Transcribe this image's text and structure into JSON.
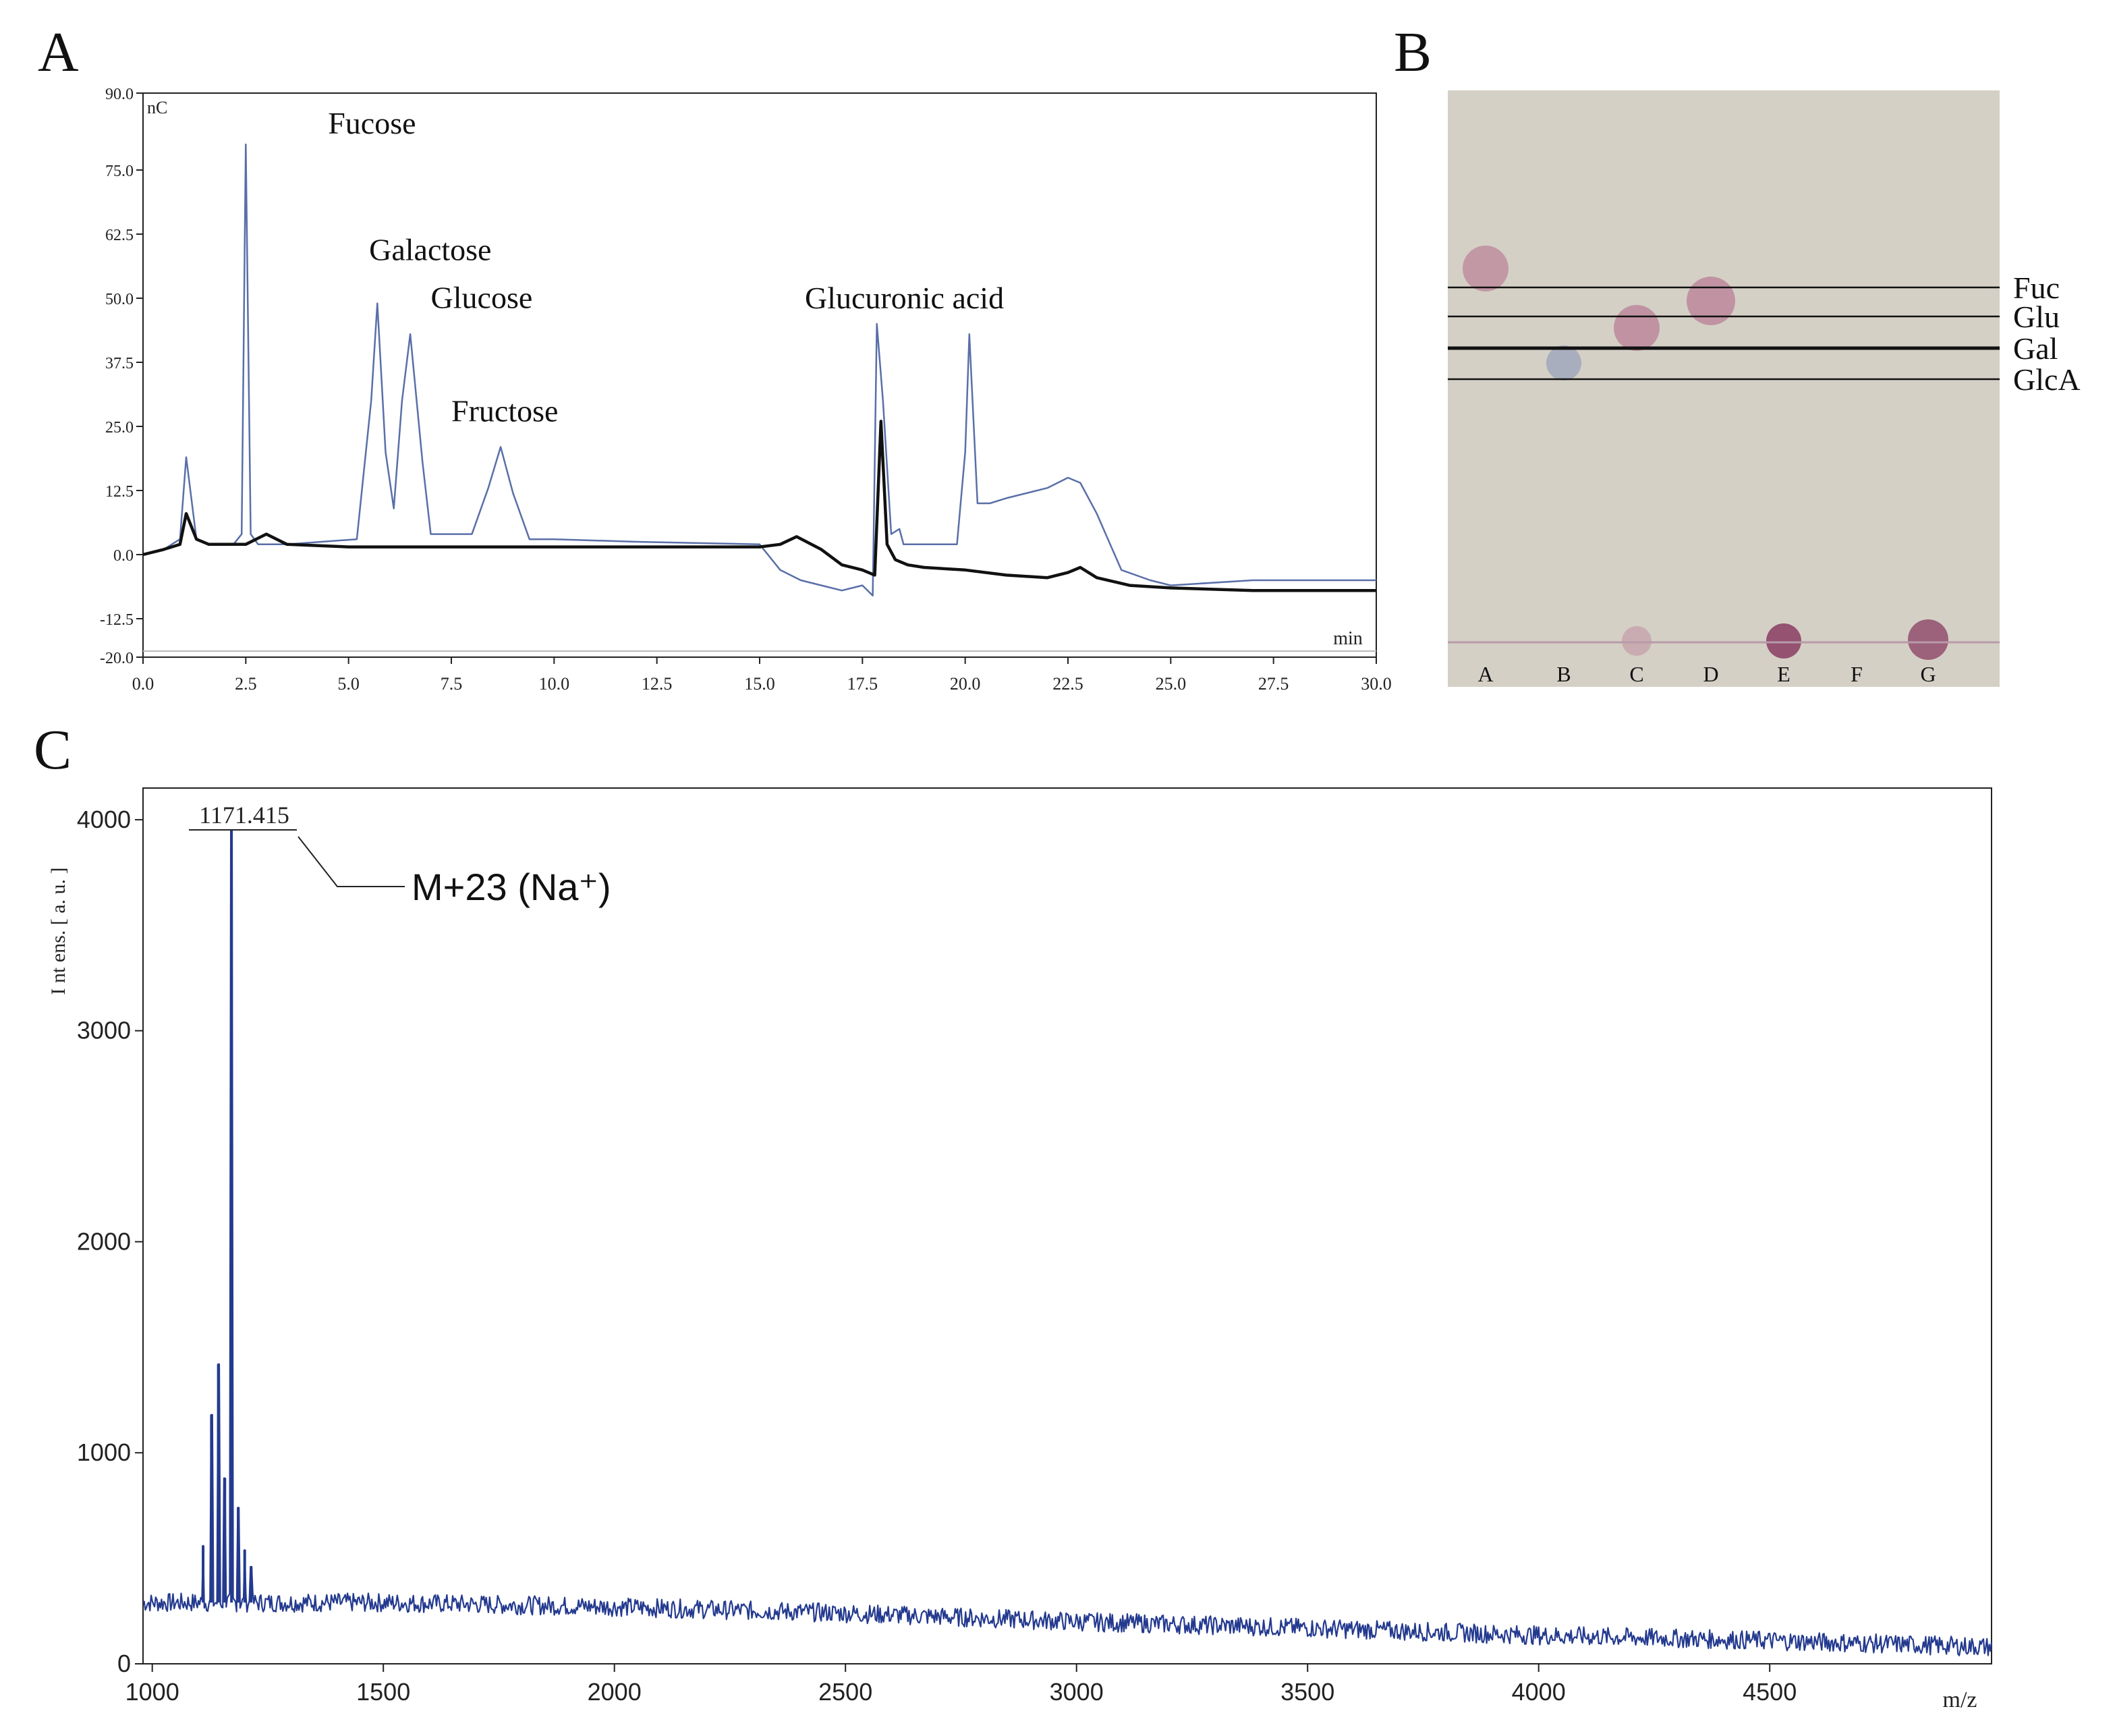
{
  "panel_letters": {
    "a": "A",
    "b": "B",
    "c": "C"
  },
  "colors": {
    "sample_line": "#5a6fa8",
    "blank_line": "#111111",
    "ms_line": "#243a8f",
    "tlc_plate": "#d4d0c6",
    "tlc_spot": "#b46a8a",
    "tlc_spot_dark": "#8a3c62",
    "tlc_spot_blue": "#8a98b8"
  },
  "chart_data": [
    {
      "panel": "A",
      "type": "line",
      "ylabel_unit": "nC",
      "xlabel": "min",
      "xlim": [
        0,
        30
      ],
      "ylim": [
        -20,
        90
      ],
      "xticks": [
        "0.0",
        "2.5",
        "5.0",
        "7.5",
        "10.0",
        "12.5",
        "15.0",
        "17.5",
        "20.0",
        "22.5",
        "25.0",
        "27.5",
        "30.0"
      ],
      "yticks": [
        "90.0",
        "75.0",
        "62.5",
        "50.0",
        "37.5",
        "25.0",
        "12.5",
        "0.0",
        "-12.5",
        "-20.0"
      ],
      "annotations": [
        {
          "text": "Fucose",
          "x": 2.5,
          "y": 80
        },
        {
          "text": "Galactose",
          "x": 5.7,
          "y": 49
        },
        {
          "text": "Glucose",
          "x": 6.5,
          "y": 46
        },
        {
          "text": "Fructose",
          "x": 8.7,
          "y": 21
        },
        {
          "text": "Glucuronic acid",
          "x": 20.1,
          "y": 43
        }
      ],
      "series": [
        {
          "role": "sample",
          "x": [
            0,
            0.5,
            0.9,
            1.05,
            1.3,
            1.6,
            2.2,
            2.4,
            2.5,
            2.62,
            2.8,
            3.0,
            3.5,
            5.2,
            5.55,
            5.7,
            5.9,
            6.1,
            6.3,
            6.5,
            6.8,
            7.0,
            8.0,
            8.4,
            8.7,
            9.0,
            9.4,
            10,
            12,
            15,
            15.5,
            16,
            16.5,
            17,
            17.5,
            17.75,
            17.85,
            18.0,
            18.2,
            18.4,
            18.5,
            19,
            19.8,
            20.0,
            20.1,
            20.3,
            20.6,
            21,
            22,
            22.5,
            22.8,
            23.2,
            23.8,
            24.5,
            25,
            27,
            30
          ],
          "y": [
            0,
            1,
            3,
            19,
            3,
            2,
            2,
            4,
            80,
            4,
            2,
            2,
            2,
            3,
            30,
            49,
            20,
            9,
            30,
            43,
            18,
            4,
            4,
            13,
            21,
            12,
            3,
            3,
            2.5,
            2,
            -3,
            -5,
            -6,
            -7,
            -6,
            -8,
            45,
            30,
            4,
            5,
            2,
            2,
            2,
            20,
            43,
            10,
            10,
            11,
            13,
            15,
            14,
            8,
            -3,
            -5,
            -6,
            -5,
            -5
          ]
        },
        {
          "role": "blank",
          "x": [
            0,
            0.5,
            0.9,
            1.05,
            1.3,
            1.6,
            2.5,
            3.0,
            3.5,
            5,
            8,
            10,
            12,
            15,
            15.5,
            15.9,
            16.5,
            17,
            17.5,
            17.8,
            17.95,
            18.1,
            18.3,
            18.6,
            19,
            20,
            21,
            22,
            22.5,
            22.8,
            23.2,
            24,
            25,
            27,
            30
          ],
          "y": [
            0,
            1,
            2,
            8,
            3,
            2,
            2,
            4,
            2,
            1.5,
            1.5,
            1.5,
            1.5,
            1.5,
            2,
            3.5,
            1,
            -2,
            -3,
            -4,
            26,
            2,
            -1,
            -2,
            -2.5,
            -3,
            -4,
            -4.5,
            -3.5,
            -2.5,
            -4.5,
            -6,
            -6.5,
            -7,
            -7
          ]
        }
      ]
    },
    {
      "panel": "B",
      "type": "other",
      "reference_lines": [
        "Fuc",
        "Glu",
        "Gal",
        "GlcA"
      ],
      "lanes": [
        "A",
        "B",
        "C",
        "D",
        "E",
        "F",
        "G"
      ]
    },
    {
      "panel": "C",
      "type": "line",
      "ylabel": "I nt ens. [ a. u. ]",
      "xlabel": "m/z",
      "xlim": [
        980,
        4980
      ],
      "ylim": [
        0,
        4150
      ],
      "xticks": [
        "1000",
        "1500",
        "2000",
        "2500",
        "3000",
        "3500",
        "4000",
        "4500"
      ],
      "yticks": [
        "0",
        "1000",
        "2000",
        "3000",
        "4000"
      ],
      "peak_label": "1171.415",
      "annotation": "M+23 (Na⁺)",
      "peaks": [
        {
          "x": 1110,
          "y": 560
        },
        {
          "x": 1128,
          "y": 1180
        },
        {
          "x": 1143,
          "y": 1420
        },
        {
          "x": 1157,
          "y": 880
        },
        {
          "x": 1171.415,
          "y": 3950
        },
        {
          "x": 1186,
          "y": 740
        },
        {
          "x": 1200,
          "y": 540
        },
        {
          "x": 1214,
          "y": 460
        }
      ],
      "baseline": {
        "x": [
          980,
          1500,
          2000,
          2500,
          3000,
          3500,
          4000,
          4500,
          4980
        ],
        "y": [
          290,
          290,
          270,
          240,
          200,
          170,
          135,
          110,
          80
        ]
      }
    }
  ]
}
